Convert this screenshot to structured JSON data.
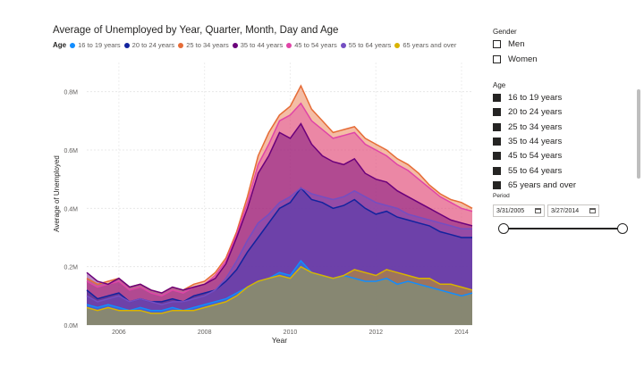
{
  "visual": {
    "title": "Average of Unemployed by Year, Quarter, Month, Day and Age",
    "legend_title": "Age"
  },
  "chart_data": {
    "type": "area",
    "xlabel": "Year",
    "ylabel": "Average of Unemployed",
    "xlim": [
      2005.25,
      2014.25
    ],
    "ylim": [
      0,
      0.9
    ],
    "x_ticks": [
      2006,
      2008,
      2010,
      2012,
      2014
    ],
    "y_ticks": [
      0,
      0.2,
      0.4,
      0.6,
      0.8
    ],
    "y_tick_labels": [
      "0.0M",
      "0.2M",
      "0.4M",
      "0.6M",
      "0.8M"
    ],
    "grid": true,
    "x": [
      2005.25,
      2005.5,
      2005.75,
      2006,
      2006.25,
      2006.5,
      2006.75,
      2007,
      2007.25,
      2007.5,
      2007.75,
      2008,
      2008.25,
      2008.5,
      2008.75,
      2009,
      2009.25,
      2009.5,
      2009.75,
      2010,
      2010.25,
      2010.5,
      2010.75,
      2011,
      2011.25,
      2011.5,
      2011.75,
      2012,
      2012.25,
      2012.5,
      2012.75,
      2013,
      2013.25,
      2013.5,
      2013.75,
      2014,
      2014.25
    ],
    "series": [
      {
        "name": "16 to 19 years",
        "color": "#118dff",
        "values": [
          0.07,
          0.06,
          0.07,
          0.06,
          0.05,
          0.06,
          0.05,
          0.05,
          0.06,
          0.05,
          0.06,
          0.07,
          0.08,
          0.09,
          0.11,
          0.13,
          0.15,
          0.16,
          0.18,
          0.17,
          0.22,
          0.18,
          0.17,
          0.16,
          0.17,
          0.16,
          0.15,
          0.15,
          0.16,
          0.14,
          0.15,
          0.14,
          0.13,
          0.12,
          0.11,
          0.1,
          0.11
        ]
      },
      {
        "name": "20 to 24 years",
        "color": "#12239e",
        "values": [
          0.12,
          0.09,
          0.1,
          0.11,
          0.08,
          0.09,
          0.08,
          0.08,
          0.09,
          0.08,
          0.1,
          0.11,
          0.12,
          0.15,
          0.19,
          0.25,
          0.3,
          0.35,
          0.4,
          0.42,
          0.47,
          0.43,
          0.42,
          0.4,
          0.41,
          0.43,
          0.4,
          0.38,
          0.39,
          0.37,
          0.36,
          0.35,
          0.34,
          0.32,
          0.31,
          0.3,
          0.3
        ]
      },
      {
        "name": "25 to 34 years",
        "color": "#e66c37",
        "values": [
          0.16,
          0.14,
          0.15,
          0.16,
          0.13,
          0.14,
          0.12,
          0.11,
          0.13,
          0.12,
          0.14,
          0.15,
          0.18,
          0.23,
          0.32,
          0.44,
          0.58,
          0.66,
          0.72,
          0.75,
          0.82,
          0.74,
          0.7,
          0.66,
          0.67,
          0.68,
          0.64,
          0.62,
          0.6,
          0.57,
          0.55,
          0.52,
          0.48,
          0.45,
          0.43,
          0.42,
          0.4
        ]
      },
      {
        "name": "35 to 44 years",
        "color": "#6b007b",
        "values": [
          0.18,
          0.15,
          0.14,
          0.16,
          0.13,
          0.14,
          0.12,
          0.11,
          0.13,
          0.12,
          0.13,
          0.14,
          0.16,
          0.21,
          0.3,
          0.4,
          0.52,
          0.58,
          0.66,
          0.64,
          0.69,
          0.62,
          0.58,
          0.56,
          0.55,
          0.57,
          0.52,
          0.5,
          0.49,
          0.46,
          0.44,
          0.42,
          0.4,
          0.38,
          0.36,
          0.35,
          0.34
        ]
      },
      {
        "name": "45 to 54 years",
        "color": "#e044a7",
        "values": [
          0.15,
          0.13,
          0.14,
          0.15,
          0.12,
          0.13,
          0.11,
          0.1,
          0.12,
          0.11,
          0.13,
          0.14,
          0.17,
          0.22,
          0.31,
          0.42,
          0.55,
          0.62,
          0.7,
          0.72,
          0.76,
          0.7,
          0.67,
          0.64,
          0.65,
          0.66,
          0.62,
          0.6,
          0.58,
          0.55,
          0.53,
          0.5,
          0.47,
          0.44,
          0.42,
          0.4,
          0.39
        ]
      },
      {
        "name": "55 to 64 years",
        "color": "#744ec2",
        "values": [
          0.1,
          0.08,
          0.09,
          0.1,
          0.08,
          0.09,
          0.08,
          0.07,
          0.08,
          0.08,
          0.09,
          0.1,
          0.12,
          0.16,
          0.22,
          0.29,
          0.35,
          0.38,
          0.42,
          0.44,
          0.47,
          0.45,
          0.44,
          0.43,
          0.44,
          0.46,
          0.44,
          0.42,
          0.41,
          0.4,
          0.38,
          0.37,
          0.36,
          0.35,
          0.34,
          0.33,
          0.33
        ]
      },
      {
        "name": "65 years and over",
        "color": "#d9b300",
        "values": [
          0.06,
          0.05,
          0.06,
          0.05,
          0.05,
          0.05,
          0.04,
          0.04,
          0.05,
          0.05,
          0.05,
          0.06,
          0.07,
          0.08,
          0.1,
          0.13,
          0.15,
          0.16,
          0.17,
          0.16,
          0.2,
          0.18,
          0.17,
          0.16,
          0.17,
          0.19,
          0.18,
          0.17,
          0.19,
          0.18,
          0.17,
          0.16,
          0.16,
          0.14,
          0.14,
          0.13,
          0.12
        ]
      }
    ]
  },
  "slicers": {
    "gender": {
      "title": "Gender",
      "items": [
        "Men",
        "Women"
      ]
    },
    "age": {
      "title": "Age",
      "items": [
        "16 to 19 years",
        "20 to 24 years",
        "25 to 34 years",
        "35 to 44 years",
        "45 to 54 years",
        "55 to 64 years",
        "65 years and over"
      ]
    },
    "period": {
      "title": "Period",
      "start": "3/31/2005",
      "end": "3/27/2014"
    }
  }
}
